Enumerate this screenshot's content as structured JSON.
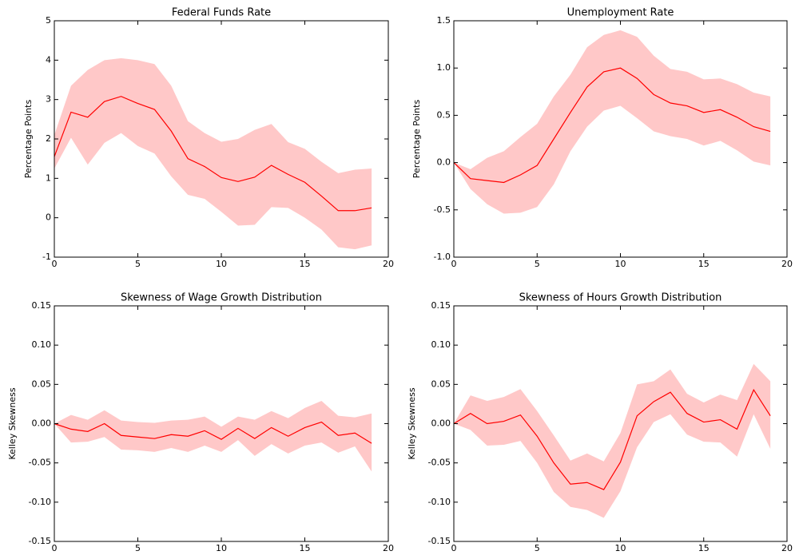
{
  "chart_data": [
    {
      "type": "line",
      "title": "Federal Funds Rate",
      "y_label": "Percentage Points",
      "x": [
        0,
        1,
        2,
        3,
        4,
        5,
        6,
        7,
        8,
        9,
        10,
        11,
        12,
        13,
        14,
        15,
        16,
        17,
        18,
        19
      ],
      "xlim": [
        0,
        20
      ],
      "xticks": [
        0,
        5,
        10,
        15,
        20
      ],
      "ylim": [
        -1,
        5
      ],
      "yticks": [
        -1,
        0,
        1,
        2,
        3,
        4,
        5
      ],
      "series": [
        {
          "color": "#ff0000",
          "values": [
            1.55,
            2.68,
            2.55,
            2.95,
            3.08,
            2.9,
            2.75,
            2.2,
            1.5,
            1.3,
            1.02,
            0.92,
            1.03,
            1.33,
            1.1,
            0.9,
            0.55,
            0.18,
            0.18,
            0.25
          ]
        }
      ],
      "band": {
        "color": "#ffc8c8",
        "upper": [
          2.1,
          3.35,
          3.75,
          4.0,
          4.05,
          4.0,
          3.9,
          3.35,
          2.45,
          2.15,
          1.93,
          2.0,
          2.23,
          2.38,
          1.92,
          1.75,
          1.42,
          1.13,
          1.22,
          1.25
        ],
        "lower": [
          1.25,
          2.03,
          1.35,
          1.9,
          2.15,
          1.82,
          1.63,
          1.05,
          0.58,
          0.48,
          0.15,
          -0.2,
          -0.18,
          0.27,
          0.25,
          0.0,
          -0.3,
          -0.75,
          -0.8,
          -0.7
        ]
      }
    },
    {
      "type": "line",
      "title": "Unemployment Rate",
      "y_label": "Percentage Points",
      "x": [
        0,
        1,
        2,
        3,
        4,
        5,
        6,
        7,
        8,
        9,
        10,
        11,
        12,
        13,
        14,
        15,
        16,
        17,
        18,
        19
      ],
      "xlim": [
        0,
        20
      ],
      "xticks": [
        0,
        5,
        10,
        15,
        20
      ],
      "ylim": [
        -1,
        1.5
      ],
      "yticks": [
        {
          "value": -1,
          "label": "-1.0"
        },
        -0.5,
        {
          "value": 0,
          "label": "0.0"
        },
        0.5,
        {
          "value": 1,
          "label": "1.0"
        },
        1.5
      ],
      "series": [
        {
          "color": "#ff0000",
          "values": [
            0,
            -0.17,
            -0.19,
            -0.21,
            -0.13,
            -0.03,
            0.25,
            0.53,
            0.8,
            0.96,
            1.0,
            0.89,
            0.72,
            0.63,
            0.6,
            0.53,
            0.56,
            0.48,
            0.38,
            0.33
          ]
        }
      ],
      "band": {
        "color": "#ffc8c8",
        "upper": [
          0,
          -0.07,
          0.05,
          0.12,
          0.27,
          0.41,
          0.7,
          0.93,
          1.22,
          1.35,
          1.4,
          1.33,
          1.13,
          0.99,
          0.96,
          0.88,
          0.89,
          0.83,
          0.74,
          0.7
        ],
        "lower": [
          0,
          -0.28,
          -0.44,
          -0.54,
          -0.53,
          -0.47,
          -0.23,
          0.12,
          0.38,
          0.55,
          0.6,
          0.47,
          0.33,
          0.28,
          0.25,
          0.18,
          0.23,
          0.13,
          0.01,
          -0.03
        ]
      }
    },
    {
      "type": "line",
      "title": "Skewness of Wage Growth Distribution",
      "y_label": "Kelley Skewness",
      "x": [
        0,
        1,
        2,
        3,
        4,
        5,
        6,
        7,
        8,
        9,
        10,
        11,
        12,
        13,
        14,
        15,
        16,
        17,
        18,
        19
      ],
      "xlim": [
        0,
        20
      ],
      "xticks": [
        0,
        5,
        10,
        15,
        20
      ],
      "ylim": [
        -0.15,
        0.15
      ],
      "yticks": [
        {
          "value": -0.15,
          "label": "-0.15"
        },
        {
          "value": -0.1,
          "label": "-0.10"
        },
        {
          "value": -0.05,
          "label": "-0.05"
        },
        {
          "value": 0,
          "label": "0.00"
        },
        {
          "value": 0.05,
          "label": "0.05"
        },
        {
          "value": 0.1,
          "label": "0.10"
        },
        {
          "value": 0.15,
          "label": "0.15"
        }
      ],
      "series": [
        {
          "color": "#ff0000",
          "values": [
            0,
            -0.007,
            -0.01,
            0.0,
            -0.015,
            -0.017,
            -0.019,
            -0.014,
            -0.016,
            -0.009,
            -0.02,
            -0.006,
            -0.019,
            -0.005,
            -0.016,
            -0.005,
            0.002,
            -0.015,
            -0.012,
            -0.025
          ]
        }
      ],
      "band": {
        "color": "#ffc8c8",
        "upper": [
          0,
          0.011,
          0.005,
          0.017,
          0.004,
          0.002,
          0.001,
          0.004,
          0.005,
          0.009,
          -0.004,
          0.009,
          0.005,
          0.016,
          0.007,
          0.02,
          0.029,
          0.01,
          0.008,
          0.013
        ],
        "lower": [
          0,
          -0.024,
          -0.023,
          -0.017,
          -0.033,
          -0.034,
          -0.036,
          -0.031,
          -0.036,
          -0.028,
          -0.036,
          -0.021,
          -0.041,
          -0.026,
          -0.038,
          -0.028,
          -0.024,
          -0.037,
          -0.029,
          -0.061
        ]
      }
    },
    {
      "type": "line",
      "title": "Skewness of Hours Growth Distribution",
      "y_label": "Kelley Skewness",
      "x": [
        0,
        1,
        2,
        3,
        4,
        5,
        6,
        7,
        8,
        9,
        10,
        11,
        12,
        13,
        14,
        15,
        16,
        17,
        18,
        19
      ],
      "xlim": [
        0,
        20
      ],
      "xticks": [
        0,
        5,
        10,
        15,
        20
      ],
      "ylim": [
        -0.15,
        0.15
      ],
      "yticks": [
        {
          "value": -0.15,
          "label": "-0.15"
        },
        {
          "value": -0.1,
          "label": "-0.10"
        },
        {
          "value": -0.05,
          "label": "-0.05"
        },
        {
          "value": 0,
          "label": "0.00"
        },
        {
          "value": 0.05,
          "label": "0.05"
        },
        {
          "value": 0.1,
          "label": "0.10"
        },
        {
          "value": 0.15,
          "label": "0.15"
        }
      ],
      "series": [
        {
          "color": "#ff0000",
          "values": [
            0,
            0.013,
            0.0,
            0.003,
            0.011,
            -0.016,
            -0.05,
            -0.077,
            -0.075,
            -0.084,
            -0.049,
            0.01,
            0.028,
            0.04,
            0.013,
            0.002,
            0.005,
            -0.007,
            0.043,
            0.01
          ]
        }
      ],
      "band": {
        "color": "#ffc8c8",
        "upper": [
          0,
          0.036,
          0.029,
          0.034,
          0.044,
          0.016,
          -0.015,
          -0.047,
          -0.038,
          -0.048,
          -0.012,
          0.05,
          0.054,
          0.069,
          0.038,
          0.027,
          0.037,
          0.03,
          0.076,
          0.054
        ],
        "lower": [
          0,
          -0.008,
          -0.028,
          -0.027,
          -0.022,
          -0.05,
          -0.087,
          -0.106,
          -0.11,
          -0.12,
          -0.086,
          -0.03,
          0.002,
          0.012,
          -0.014,
          -0.023,
          -0.024,
          -0.042,
          0.012,
          -0.032
        ]
      }
    }
  ]
}
